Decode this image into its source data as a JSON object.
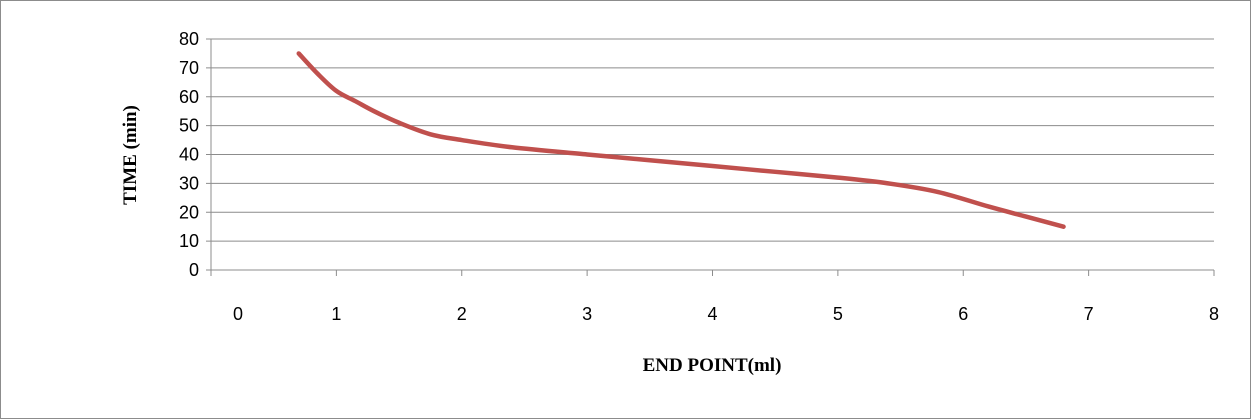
{
  "chart_data": {
    "type": "line",
    "title": "",
    "xlabel": "END POINT(ml)",
    "ylabel": "TIME (min)",
    "xlim": [
      0,
      8
    ],
    "ylim": [
      0,
      80
    ],
    "x_ticks": [
      0,
      1,
      2,
      3,
      4,
      5,
      6,
      7,
      8
    ],
    "y_ticks": [
      0,
      10,
      20,
      30,
      40,
      50,
      60,
      70,
      80
    ],
    "grid": "horizontal",
    "legend": "none",
    "series": [
      {
        "color": "#C0504D",
        "x": [
          0.7,
          0.85,
          1.0,
          1.15,
          1.3,
          1.5,
          1.75,
          2.0,
          2.4,
          3.0,
          3.5,
          4.0,
          4.5,
          5.0,
          5.4,
          5.8,
          6.2,
          6.5,
          6.8
        ],
        "y": [
          75,
          68,
          62,
          58.5,
          55,
          51,
          47,
          45,
          42.5,
          40,
          38,
          36,
          34,
          32,
          30,
          27,
          22,
          18.5,
          15
        ]
      }
    ]
  }
}
